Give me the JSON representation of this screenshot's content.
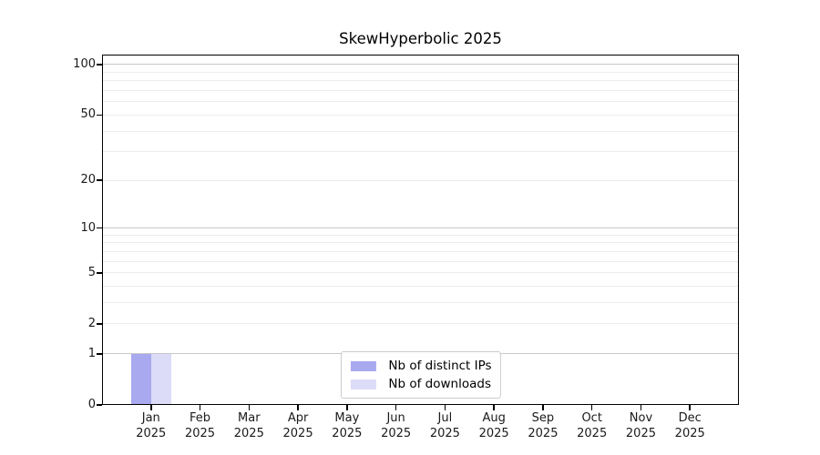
{
  "chart_data": {
    "type": "bar",
    "title": "SkewHyperbolic 2025",
    "categories": [
      "Jan 2025",
      "Feb 2025",
      "Mar 2025",
      "Apr 2025",
      "May 2025",
      "Jun 2025",
      "Jul 2025",
      "Aug 2025",
      "Sep 2025",
      "Oct 2025",
      "Nov 2025",
      "Dec 2025"
    ],
    "x_tick_labels": [
      "Jan\n2025",
      "Feb\n2025",
      "Mar\n2025",
      "Apr\n2025",
      "May\n2025",
      "Jun\n2025",
      "Jul\n2025",
      "Aug\n2025",
      "Sep\n2025",
      "Oct\n2025",
      "Nov\n2025",
      "Dec\n2025"
    ],
    "series": [
      {
        "name": "Nb of distinct IPs",
        "color": "#a9a9f0",
        "values": [
          1,
          0,
          0,
          0,
          0,
          0,
          0,
          0,
          0,
          0,
          0,
          0
        ]
      },
      {
        "name": "Nb of downloads",
        "color": "#dcdcf8",
        "values": [
          1,
          0,
          0,
          0,
          0,
          0,
          0,
          0,
          0,
          0,
          0,
          0
        ]
      }
    ],
    "yscale": "log1p",
    "ylim": [
      0,
      114.6
    ],
    "y_ticks": [
      0,
      1,
      2,
      5,
      10,
      20,
      50,
      100
    ],
    "grid_major": [
      1,
      10,
      100
    ],
    "grid_minor": [
      2,
      3,
      4,
      5,
      6,
      7,
      8,
      9,
      20,
      30,
      40,
      50,
      60,
      70,
      80,
      90
    ],
    "grid": "horizontal",
    "legend_position": "lower center",
    "xlabel": "",
    "ylabel": ""
  },
  "colors": {
    "background": "#ffffff",
    "grid_major": "#c8c8c8",
    "grid_minor": "#ececec",
    "spine": "#000000",
    "tick_text": "#1a1a1a",
    "legend_border": "#cccccc"
  }
}
